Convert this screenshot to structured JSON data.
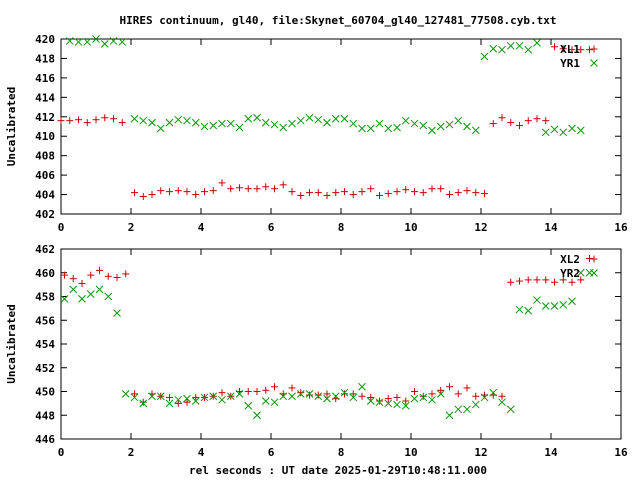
{
  "chart_data": {
    "title": "HIRES continuum, gl40, file:Skynet_60704_gl40_127481_77508.cyb.txt",
    "xlabel": "rel seconds : UT date 2025-01-29T10:48:11.000",
    "panels": [
      {
        "type": "scatter",
        "ylabel": "Uncalibrated",
        "xlim": [
          0,
          16
        ],
        "ylim": [
          402,
          420
        ],
        "xticks": [
          "0",
          "2",
          "4",
          "6",
          "8",
          "10",
          "12",
          "14",
          "16"
        ],
        "yticks": [
          "402",
          "404",
          "406",
          "408",
          "410",
          "412",
          "414",
          "416",
          "418",
          "420"
        ],
        "series": [
          {
            "name": "XL1",
            "marker": "plus",
            "color": "#cc0000",
            "x": [
              0.0,
              0.25,
              0.5,
              0.75,
              1.0,
              1.25,
              1.5,
              1.75,
              2.1,
              2.35,
              2.6,
              2.85,
              3.1,
              3.35,
              3.6,
              3.85,
              4.1,
              4.35,
              4.6,
              4.85,
              5.1,
              5.35,
              5.6,
              5.85,
              6.1,
              6.35,
              6.6,
              6.85,
              7.1,
              7.35,
              7.6,
              7.85,
              8.1,
              8.35,
              8.6,
              8.85,
              9.1,
              9.35,
              9.6,
              9.85,
              10.1,
              10.35,
              10.6,
              10.85,
              11.1,
              11.35,
              11.6,
              11.85,
              12.1,
              12.35,
              12.6,
              12.85,
              13.1,
              13.35,
              13.6,
              13.85,
              14.1,
              14.35,
              14.6,
              14.85,
              15.1
            ],
            "y": [
              411.6,
              411.6,
              411.7,
              411.4,
              411.7,
              411.9,
              411.8,
              411.4,
              404.2,
              403.8,
              404.0,
              404.4,
              404.3,
              404.4,
              404.3,
              404.0,
              404.3,
              404.4,
              405.2,
              404.6,
              404.7,
              404.6,
              404.6,
              404.8,
              404.6,
              405.0,
              404.3,
              403.9,
              404.2,
              404.2,
              403.9,
              404.2,
              404.3,
              404.0,
              404.3,
              404.6,
              403.9,
              404.1,
              404.3,
              404.5,
              404.3,
              404.2,
              404.6,
              404.6,
              404.0,
              404.2,
              404.4,
              404.2,
              404.1,
              411.3,
              411.9,
              411.4,
              411.1,
              411.6,
              411.8,
              411.6,
              419.2,
              419.0,
              418.9,
              418.9,
              418.9
            ],
            "_note": ""
          },
          {
            "name": "YR1",
            "marker": "cross",
            "color": "#009900",
            "x": [
              0.25,
              0.5,
              0.75,
              1.0,
              1.25,
              1.5,
              1.75,
              2.1,
              2.35,
              2.6,
              2.85,
              3.1,
              3.35,
              3.6,
              3.85,
              4.1,
              4.35,
              4.6,
              4.85,
              5.1,
              5.35,
              5.6,
              5.85,
              6.1,
              6.35,
              6.6,
              6.85,
              7.1,
              7.35,
              7.6,
              7.85,
              8.1,
              8.35,
              8.6,
              8.85,
              9.1,
              9.35,
              9.6,
              9.85,
              10.1,
              10.35,
              10.6,
              10.85,
              11.1,
              11.35,
              11.6,
              11.85,
              12.1,
              12.35,
              12.6,
              12.85,
              13.1,
              13.35,
              13.6,
              13.85,
              14.1,
              14.35,
              14.6,
              14.85
            ],
            "y": [
              419.8,
              419.7,
              419.7,
              420.0,
              419.5,
              419.8,
              419.7,
              411.8,
              411.6,
              411.4,
              410.8,
              411.4,
              411.7,
              411.6,
              411.4,
              411.0,
              411.1,
              411.3,
              411.3,
              410.9,
              411.8,
              411.9,
              411.4,
              411.2,
              410.9,
              411.3,
              411.6,
              411.9,
              411.7,
              411.4,
              411.8,
              411.8,
              411.3,
              410.8,
              410.8,
              411.3,
              410.8,
              410.9,
              411.6,
              411.3,
              411.1,
              410.6,
              411.0,
              411.2,
              411.6,
              411.0,
              410.6,
              418.2,
              419.0,
              418.9,
              419.3,
              419.3,
              418.9,
              419.6,
              410.4,
              410.7,
              410.4,
              410.8,
              410.6
            ],
            "_note": ""
          }
        ],
        "legend": {
          "position": "top-right",
          "entries": [
            "XL1",
            "YR1"
          ]
        }
      },
      {
        "type": "scatter",
        "ylabel": "Uncalibrated",
        "xlim": [
          0,
          16
        ],
        "ylim": [
          446,
          462
        ],
        "xticks": [
          "0",
          "2",
          "4",
          "6",
          "8",
          "10",
          "12",
          "14",
          "16"
        ],
        "yticks": [
          "446",
          "448",
          "450",
          "452",
          "454",
          "456",
          "458",
          "460",
          "462"
        ],
        "series": [
          {
            "name": "XL2",
            "marker": "plus",
            "color": "#cc0000",
            "x": [
              0.1,
              0.35,
              0.6,
              0.85,
              1.1,
              1.35,
              1.6,
              1.85,
              2.1,
              2.35,
              2.6,
              2.85,
              3.1,
              3.35,
              3.6,
              3.85,
              4.1,
              4.35,
              4.6,
              4.85,
              5.1,
              5.35,
              5.6,
              5.85,
              6.1,
              6.35,
              6.6,
              6.85,
              7.1,
              7.35,
              7.6,
              7.85,
              8.1,
              8.35,
              8.6,
              8.85,
              9.1,
              9.35,
              9.6,
              9.85,
              10.1,
              10.35,
              10.6,
              10.85,
              11.1,
              11.35,
              11.6,
              11.85,
              12.1,
              12.35,
              12.6,
              12.85,
              13.1,
              13.35,
              13.6,
              13.85,
              14.1,
              14.35,
              14.6,
              14.85,
              15.1
            ],
            "y": [
              459.8,
              459.5,
              459.1,
              459.8,
              460.2,
              459.7,
              459.6,
              459.9,
              449.8,
              449.1,
              449.8,
              449.6,
              449.5,
              449.0,
              449.1,
              449.5,
              449.5,
              449.6,
              449.9,
              449.6,
              450.0,
              450.0,
              450.0,
              450.1,
              450.4,
              449.8,
              450.3,
              449.9,
              449.7,
              449.7,
              449.8,
              449.4,
              449.8,
              449.8,
              449.6,
              449.5,
              449.2,
              449.4,
              449.5,
              449.2,
              450.0,
              449.6,
              449.8,
              450.1,
              450.4,
              449.8,
              450.3,
              449.6,
              449.7,
              449.7,
              449.6,
              459.2,
              459.3,
              459.4,
              459.4,
              459.4,
              459.2,
              459.4,
              459.2,
              459.4,
              461.2
            ],
            "_note": ""
          },
          {
            "name": "YR2",
            "marker": "cross",
            "color": "#009900",
            "x": [
              0.1,
              0.35,
              0.6,
              0.85,
              1.1,
              1.35,
              1.6,
              1.85,
              2.1,
              2.35,
              2.6,
              2.85,
              3.1,
              3.35,
              3.6,
              3.85,
              4.1,
              4.35,
              4.6,
              4.85,
              5.1,
              5.35,
              5.6,
              5.85,
              6.1,
              6.35,
              6.6,
              6.85,
              7.1,
              7.35,
              7.6,
              7.85,
              8.1,
              8.35,
              8.6,
              8.85,
              9.1,
              9.35,
              9.6,
              9.85,
              10.1,
              10.35,
              10.6,
              10.85,
              11.1,
              11.35,
              11.6,
              11.85,
              12.1,
              12.35,
              12.6,
              12.85,
              13.1,
              13.35,
              13.6,
              13.85,
              14.1,
              14.35,
              14.6,
              14.85,
              15.1
            ],
            "y": [
              457.8,
              458.6,
              457.8,
              458.2,
              458.6,
              458.0,
              456.6,
              449.8,
              449.5,
              449.0,
              449.6,
              449.6,
              449.0,
              449.3,
              449.4,
              449.2,
              449.5,
              449.6,
              449.3,
              449.6,
              449.8,
              448.8,
              448.0,
              449.2,
              449.1,
              449.6,
              449.6,
              449.8,
              449.8,
              449.6,
              449.4,
              449.6,
              449.9,
              449.5,
              450.4,
              449.2,
              449.1,
              449.0,
              448.9,
              448.8,
              449.4,
              449.5,
              449.3,
              449.8,
              448.0,
              448.5,
              448.5,
              448.9,
              449.5,
              449.9,
              449.1,
              448.5,
              456.9,
              456.8,
              457.7,
              457.2,
              457.2,
              457.3,
              457.6,
              460.0,
              460.0
            ],
            "_note": ""
          }
        ],
        "legend": {
          "position": "top-right",
          "entries": [
            "XL2",
            "YR2"
          ]
        }
      }
    ]
  }
}
